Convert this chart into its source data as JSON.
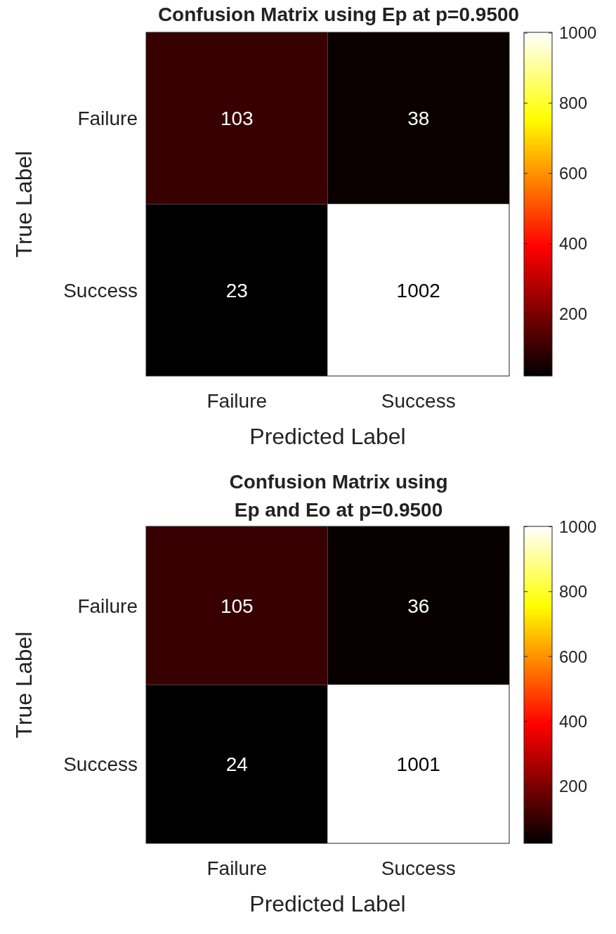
{
  "chart_data": [
    {
      "type": "heatmap",
      "title": "Confusion Matrix using Ep at p=0.9500",
      "xlabel": "Predicted Label",
      "ylabel": "True Label",
      "categories": [
        "Failure",
        "Success"
      ],
      "y_categories": [
        "Failure",
        "Success"
      ],
      "cells": [
        [
          103,
          38
        ],
        [
          23,
          1002
        ]
      ],
      "clim": [
        23,
        1002
      ],
      "cticks": [
        200,
        400,
        600,
        800,
        1000
      ],
      "data_labels": true
    },
    {
      "type": "heatmap",
      "title": "Confusion Matrix using\nEp and Eo at p=0.9500",
      "xlabel": "Predicted Label",
      "ylabel": "True Label",
      "categories": [
        "Failure",
        "Success"
      ],
      "y_categories": [
        "Failure",
        "Success"
      ],
      "cells": [
        [
          105,
          36
        ],
        [
          24,
          1001
        ]
      ],
      "clim": [
        24,
        1001
      ],
      "cticks": [
        200,
        400,
        600,
        800,
        1000
      ],
      "data_labels": true
    }
  ]
}
